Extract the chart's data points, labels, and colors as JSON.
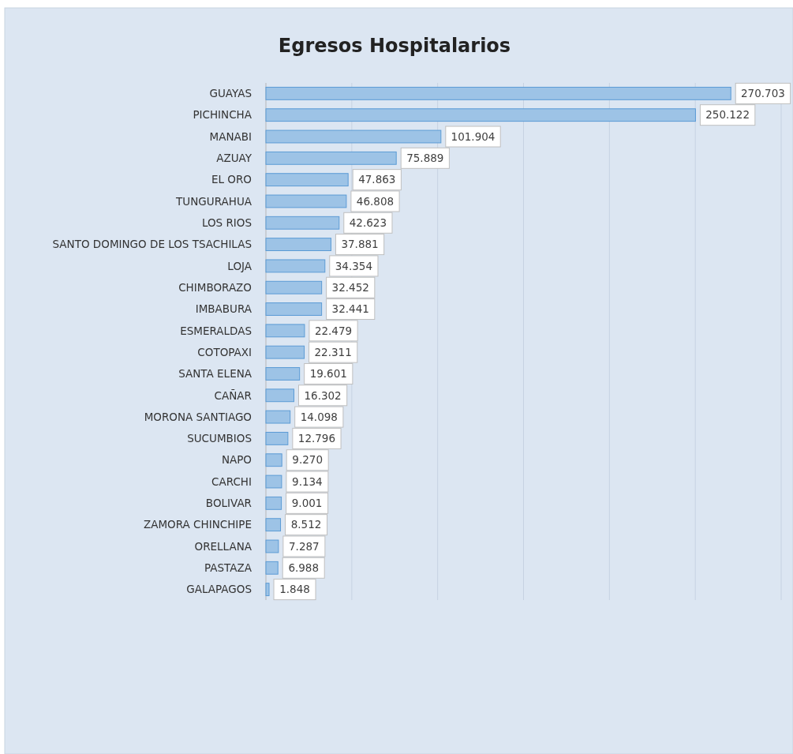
{
  "chart_data": {
    "type": "bar",
    "orientation": "horizontal",
    "title": "Egresos Hospitalarios",
    "categories": [
      "GUAYAS",
      "PICHINCHA",
      "MANABI",
      "AZUAY",
      "EL ORO",
      "TUNGURAHUA",
      "LOS RIOS",
      "SANTO DOMINGO DE LOS TSACHILAS",
      "LOJA",
      "CHIMBORAZO",
      "IMBABURA",
      "ESMERALDAS",
      "COTOPAXI",
      "SANTA ELENA",
      "CAÑAR",
      "MORONA SANTIAGO",
      "SUCUMBIOS",
      "NAPO",
      "CARCHI",
      "BOLIVAR",
      "ZAMORA CHINCHIPE",
      "ORELLANA",
      "PASTAZA",
      "GALAPAGOS"
    ],
    "values": [
      270703,
      250122,
      101904,
      75889,
      47863,
      46808,
      42623,
      37881,
      34354,
      32452,
      32441,
      22479,
      22311,
      19601,
      16302,
      14098,
      12796,
      9270,
      9134,
      9001,
      8512,
      7287,
      6988,
      1848
    ],
    "value_labels": [
      "270.703",
      "250.122",
      "101.904",
      "75.889",
      "47.863",
      "46.808",
      "42.623",
      "37.881",
      "34.354",
      "32.452",
      "32.441",
      "22.479",
      "22.311",
      "19.601",
      "16.302",
      "14.098",
      "12.796",
      "9.270",
      "9.134",
      "9.001",
      "8.512",
      "7.287",
      "6.988",
      "1.848"
    ],
    "color": "#9dc3e6",
    "xlim": [
      0,
      300000
    ],
    "xticks": [
      {
        "value": 0,
        "label": null
      },
      {
        "value": 50000,
        "label": null
      },
      {
        "value": 100000,
        "label": null
      },
      {
        "value": 150000,
        "label": null
      },
      {
        "value": 200000,
        "label": null
      },
      {
        "value": 250000,
        "label": null
      },
      {
        "value": 300000,
        "label": null
      }
    ],
    "grid": "x",
    "tick_labels": "y"
  }
}
